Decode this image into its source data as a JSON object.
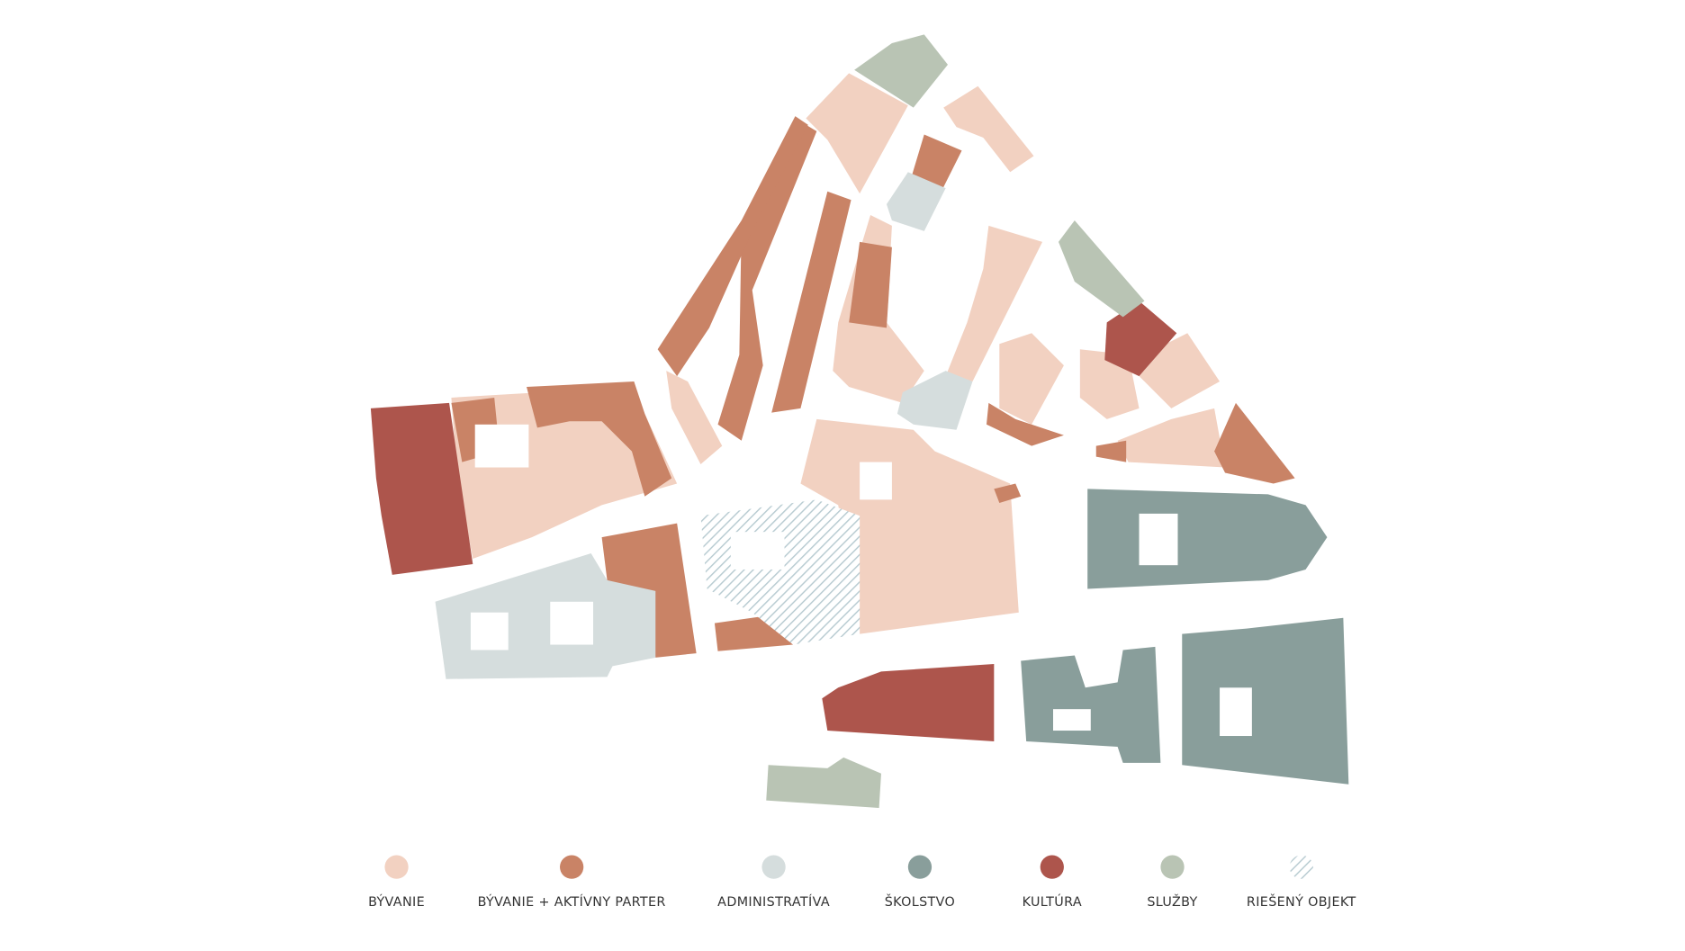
{
  "legend": {
    "items": [
      {
        "label": "BÝVANIE",
        "color": "#f2d1c1"
      },
      {
        "label": "BÝVANIE  + AKTÍVNY PARTER",
        "color": "#c98366"
      },
      {
        "label": "ADMINISTRATÍVA",
        "color": "#d5dddd"
      },
      {
        "label": "ŠKOLSTVO",
        "color": "#899e9b"
      },
      {
        "label": "KULTÚRA",
        "color": "#ad554c"
      },
      {
        "label": "SLUŽBY",
        "color": "#b9c4b4"
      },
      {
        "label": "RIEŠENÝ OBJEKT",
        "color": "#b9ccd2",
        "fill": "hatch"
      }
    ]
  }
}
